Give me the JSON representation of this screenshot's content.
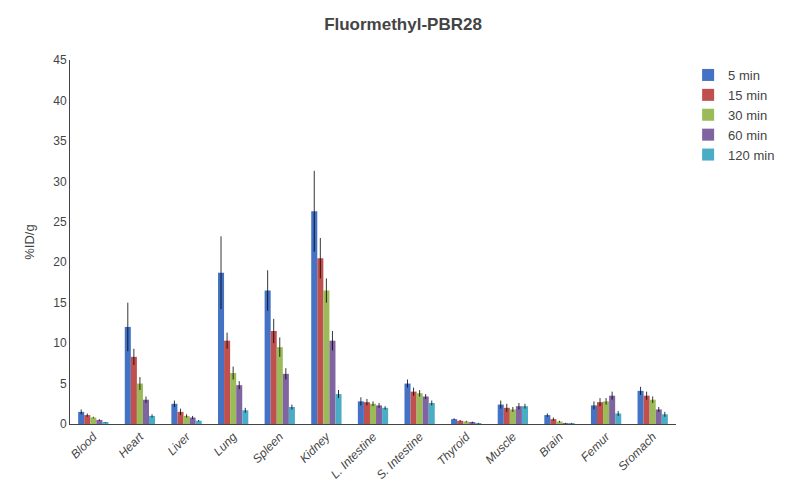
{
  "chart_data": {
    "type": "bar",
    "title": "Fluormethyl-PBR28",
    "ylabel": "%ID/g",
    "categories": [
      "Blood",
      "Heart",
      "Liver",
      "Lung",
      "Spleen",
      "Kidney",
      "L. Intestine",
      "S. Intestine",
      "Thyroid",
      "Muscle",
      "Brain",
      "Femur",
      "Sromach"
    ],
    "series": [
      {
        "name": "5 min",
        "color": "#4472C4",
        "values": [
          1.5,
          12.0,
          2.5,
          18.7,
          16.5,
          26.3,
          2.8,
          5.0,
          0.6,
          2.4,
          1.1,
          2.3,
          4.1
        ],
        "errors": [
          0.3,
          3.0,
          0.4,
          4.5,
          2.5,
          5.0,
          0.5,
          0.5,
          0.1,
          0.5,
          0.2,
          0.5,
          0.5
        ]
      },
      {
        "name": "15 min",
        "color": "#C0504D",
        "values": [
          1.1,
          8.3,
          1.5,
          10.3,
          11.5,
          20.5,
          2.7,
          4.0,
          0.4,
          2.0,
          0.6,
          2.7,
          3.5
        ],
        "errors": [
          0.2,
          1.0,
          0.4,
          1.0,
          1.5,
          2.5,
          0.4,
          0.5,
          0.1,
          0.5,
          0.2,
          0.5,
          0.5
        ]
      },
      {
        "name": "30 min",
        "color": "#9BBB59",
        "values": [
          0.8,
          5.0,
          1.0,
          6.3,
          9.5,
          16.5,
          2.5,
          3.8,
          0.3,
          1.8,
          0.3,
          2.8,
          3.0
        ],
        "errors": [
          0.1,
          0.8,
          0.2,
          0.8,
          1.2,
          1.5,
          0.3,
          0.4,
          0.1,
          0.3,
          0.1,
          0.4,
          0.4
        ]
      },
      {
        "name": "60 min",
        "color": "#8064A2",
        "values": [
          0.5,
          3.0,
          0.8,
          4.8,
          6.2,
          10.3,
          2.3,
          3.4,
          0.2,
          2.2,
          0.1,
          3.5,
          1.8
        ],
        "errors": [
          0.1,
          0.4,
          0.2,
          0.5,
          0.7,
          1.2,
          0.3,
          0.3,
          0.1,
          0.4,
          0.05,
          0.5,
          0.3
        ]
      },
      {
        "name": "120 min",
        "color": "#4BACC6",
        "values": [
          0.2,
          1.0,
          0.4,
          1.7,
          2.1,
          3.7,
          2.0,
          2.6,
          0.1,
          2.2,
          0.1,
          1.3,
          1.2
        ],
        "errors": [
          0.05,
          0.2,
          0.1,
          0.3,
          0.3,
          0.5,
          0.2,
          0.3,
          0.05,
          0.3,
          0.05,
          0.3,
          0.3
        ]
      }
    ],
    "ylim": [
      0,
      45
    ],
    "yticks": [
      0,
      5,
      10,
      15,
      20,
      25,
      30,
      35,
      40,
      45
    ],
    "grid": false,
    "legend": "upper right"
  }
}
